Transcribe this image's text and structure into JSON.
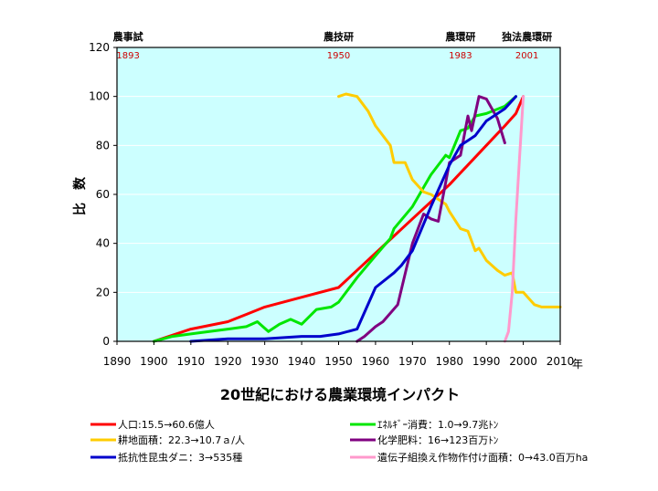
{
  "chart_data": {
    "type": "line",
    "title": "20世紀における農業環境インパクト",
    "ylabel": "比　数",
    "xunit": "年",
    "xlim": [
      1890,
      2010
    ],
    "ylim": [
      0,
      120
    ],
    "xticks": [
      "1890",
      "1900",
      "1910",
      "1920",
      "1930",
      "1940",
      "1950",
      "1960",
      "1970",
      "1980",
      "1990",
      "2000",
      "2010"
    ],
    "yticks": [
      "0",
      "20",
      "40",
      "60",
      "80",
      "100",
      "120"
    ],
    "grid": true,
    "plot_background": "#ccffff",
    "era_markers": [
      {
        "name": "農事試",
        "year_label": "1893",
        "year": 1893
      },
      {
        "name": "農技研",
        "year_label": "1950",
        "year": 1950
      },
      {
        "name": "農環研",
        "year_label": "1983",
        "year": 1983
      },
      {
        "name": "独法農環研",
        "year_label": "2001",
        "year": 2001
      }
    ],
    "series": [
      {
        "name": "人口:15.5→60.6億人",
        "color": "#ff0000",
        "x": [
          1900,
          1910,
          1920,
          1925,
          1930,
          1940,
          1950,
          1955,
          1960,
          1965,
          1970,
          1975,
          1980,
          1985,
          1990,
          1995,
          1998,
          2000
        ],
        "y": [
          0,
          5,
          8,
          11,
          14,
          18,
          22,
          29,
          36,
          43,
          50,
          57,
          64,
          72,
          80,
          88,
          93,
          100
        ]
      },
      {
        "name": "ｴﾈﾙｷﾞｰ消費：1.0→9.7兆ﾄﾝ",
        "color": "#00e600",
        "x": [
          1900,
          1905,
          1910,
          1915,
          1920,
          1925,
          1928,
          1931,
          1934,
          1937,
          1940,
          1944,
          1948,
          1950,
          1955,
          1960,
          1964,
          1965,
          1970,
          1975,
          1979,
          1980,
          1983,
          1985,
          1987,
          1990,
          1995,
          1998
        ],
        "y": [
          0,
          2,
          3,
          4,
          5,
          6,
          8,
          4,
          7,
          9,
          7,
          13,
          14,
          16,
          26,
          35,
          42,
          46,
          55,
          68,
          76,
          75,
          86,
          87,
          92,
          93,
          96,
          100
        ]
      },
      {
        "name": "耕地面積：22.3→10.7ａ/人",
        "color": "#ffcc00",
        "x": [
          1950,
          1952,
          1955,
          1958,
          1960,
          1964,
          1965,
          1968,
          1970,
          1973,
          1975,
          1979,
          1980,
          1983,
          1985,
          1987,
          1988,
          1990,
          1993,
          1995,
          1997,
          1998,
          2000,
          2003,
          2005,
          2010
        ],
        "y": [
          100,
          101,
          100,
          94,
          88,
          80,
          73,
          73,
          66,
          61,
          60,
          56,
          53,
          46,
          45,
          37,
          38,
          33,
          29,
          27,
          28,
          20,
          20,
          15,
          14,
          14
        ]
      },
      {
        "name": "化学肥料：16→123百万ﾄﾝ",
        "color": "#800080",
        "x": [
          1955,
          1957,
          1960,
          1962,
          1966,
          1970,
          1973,
          1975,
          1977,
          1980,
          1983,
          1985,
          1986,
          1988,
          1990,
          1993,
          1995
        ],
        "y": [
          0,
          2,
          6,
          8,
          15,
          40,
          52,
          50,
          49,
          73,
          76,
          92,
          86,
          100,
          99,
          91,
          81
        ]
      },
      {
        "name": "抵抗性昆虫ダニ：3→535種",
        "color": "#0000cc",
        "x": [
          1910,
          1920,
          1930,
          1940,
          1945,
          1950,
          1955,
          1960,
          1965,
          1967,
          1970,
          1975,
          1980,
          1983,
          1985,
          1987,
          1990,
          1995,
          1998
        ],
        "y": [
          0,
          1,
          1,
          2,
          2,
          3,
          5,
          22,
          28,
          31,
          37,
          55,
          72,
          80,
          82,
          84,
          90,
          95,
          100
        ]
      },
      {
        "name": "遺伝子組換え作物作付け面積：0→43.0百万ha",
        "color": "#ff99cc",
        "x": [
          1995,
          1996,
          1997,
          1998,
          1999,
          2000
        ],
        "y": [
          0,
          4,
          20,
          50,
          75,
          100
        ]
      }
    ]
  }
}
